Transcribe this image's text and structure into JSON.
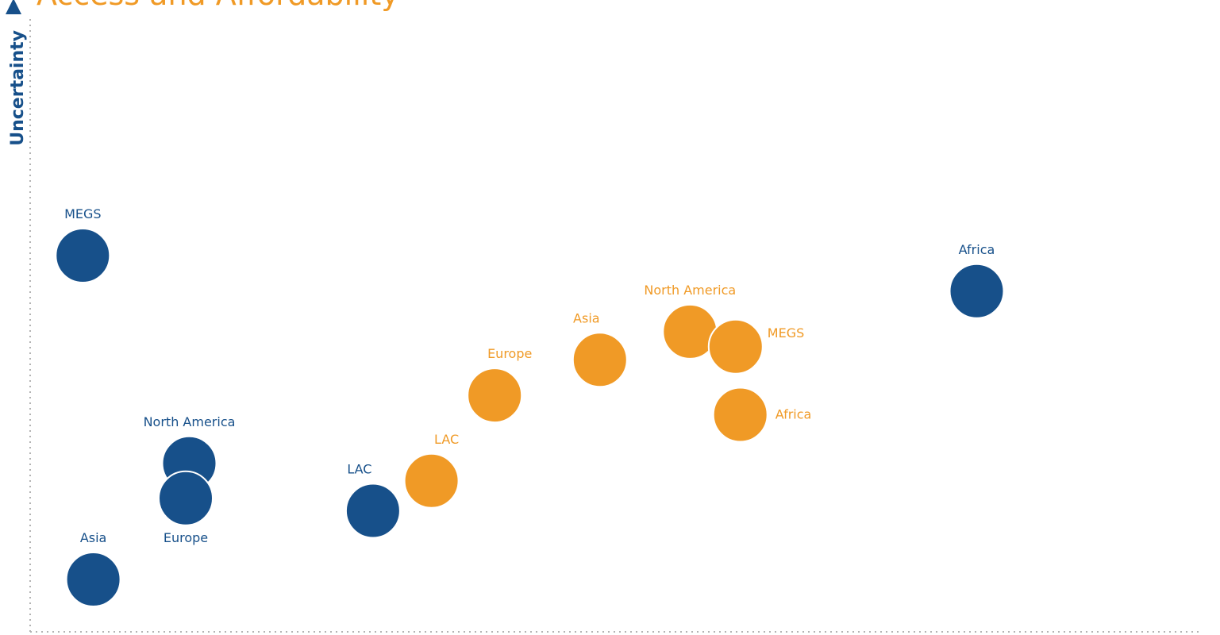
{
  "colors": {
    "series_a": "#17508a",
    "series_b": "#f09a26",
    "axis": "#b3b3b3",
    "title": "#f09a26",
    "ylabel": "#17508a"
  },
  "chart_data": {
    "type": "scatter",
    "title": "Access and Affordability",
    "xlabel": "",
    "ylabel": "Uncertainty",
    "xlim": [
      0,
      100
    ],
    "ylim": [
      0,
      100
    ],
    "grid": false,
    "series": [
      {
        "color_key": "series_a",
        "points": [
          {
            "label": "MEGS",
            "x": 4.5,
            "y": 60.3,
            "label_pos": "top"
          },
          {
            "label": "North America",
            "x": 13.6,
            "y": 27.0,
            "label_pos": "top"
          },
          {
            "label": "Europe",
            "x": 13.3,
            "y": 21.4,
            "label_pos": "bottom"
          },
          {
            "label": "Asia",
            "x": 5.4,
            "y": 8.4,
            "label_pos": "top"
          },
          {
            "label": "LAC",
            "x": 29.3,
            "y": 19.4,
            "label_pos": "top-left"
          },
          {
            "label": "Africa",
            "x": 80.9,
            "y": 54.6,
            "label_pos": "top"
          }
        ]
      },
      {
        "color_key": "series_b",
        "points": [
          {
            "label": "LAC",
            "x": 34.3,
            "y": 24.2,
            "label_pos": "top-right"
          },
          {
            "label": "Europe",
            "x": 39.7,
            "y": 37.9,
            "label_pos": "top-right"
          },
          {
            "label": "Asia",
            "x": 48.7,
            "y": 43.6,
            "label_pos": "top-left"
          },
          {
            "label": "North America",
            "x": 56.4,
            "y": 48.1,
            "label_pos": "top"
          },
          {
            "label": "MEGS",
            "x": 60.3,
            "y": 45.7,
            "label_pos": "top-right"
          },
          {
            "label": "Africa",
            "x": 60.7,
            "y": 34.8,
            "label_pos": "right"
          }
        ]
      }
    ]
  }
}
